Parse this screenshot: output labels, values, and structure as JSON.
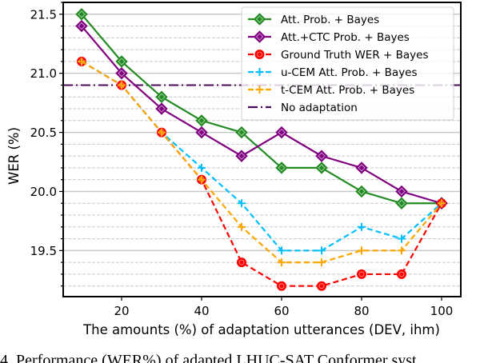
{
  "chart_data": {
    "type": "line",
    "title": "",
    "xlabel": "The amounts (%) of adaptation utterances (DEV, ihm)",
    "ylabel": "WER (%)",
    "x": [
      10,
      20,
      30,
      40,
      50,
      60,
      70,
      80,
      90,
      100
    ],
    "xticks": [
      20,
      40,
      60,
      80,
      100
    ],
    "xtick_labels": [
      "20",
      "40",
      "60",
      "80",
      "100"
    ],
    "yticks": [
      19.5,
      20.0,
      20.5,
      21.0,
      21.5
    ],
    "ytick_labels": [
      "19.5",
      "20.0",
      "20.5",
      "21.0",
      "21.5"
    ],
    "xlim": [
      5.4,
      104.8
    ],
    "ylim": [
      19.11,
      21.6
    ],
    "grid": {
      "major": "solid",
      "minor": "dashed",
      "minor_step": 0.1
    },
    "legend_position": "top-right",
    "series": [
      {
        "name": "Att. Prob. + Bayes",
        "color": "#228b22",
        "style": "solid",
        "marker": "diamond",
        "values": [
          21.5,
          21.1,
          20.8,
          20.6,
          20.5,
          20.2,
          20.2,
          20.0,
          19.9,
          19.9
        ]
      },
      {
        "name": "Att.+CTC Prob. + Bayes",
        "color": "#800080",
        "style": "solid",
        "marker": "diamond",
        "values": [
          21.4,
          21.0,
          20.7,
          20.5,
          20.3,
          20.5,
          20.3,
          20.2,
          20.0,
          19.9
        ]
      },
      {
        "name": "Ground Truth WER + Bayes",
        "color": "#ff0000",
        "style": "dashed",
        "marker": "circle",
        "values": [
          21.1,
          20.9,
          20.5,
          20.1,
          19.4,
          19.2,
          19.2,
          19.3,
          19.3,
          19.9
        ]
      },
      {
        "name": "u-CEM Att. Prob. + Bayes",
        "color": "#00bfff",
        "style": "dashed",
        "marker": "plus",
        "values": [
          21.1,
          20.9,
          20.5,
          20.2,
          19.9,
          19.5,
          19.5,
          19.7,
          19.6,
          19.9
        ]
      },
      {
        "name": "t-CEM Att. Prob. + Bayes",
        "color": "#ffa500",
        "style": "dashed",
        "marker": "plus",
        "values": [
          21.1,
          20.9,
          20.5,
          20.1,
          19.7,
          19.4,
          19.4,
          19.5,
          19.5,
          19.9
        ]
      }
    ],
    "reference_lines": [
      {
        "name": "No adaptation",
        "color": "#4b0a5a",
        "style": "dashdot",
        "value": 20.9
      }
    ]
  },
  "caption": "4.   Performance (WER%) of adapted LHUC-SAT Conformer syst"
}
